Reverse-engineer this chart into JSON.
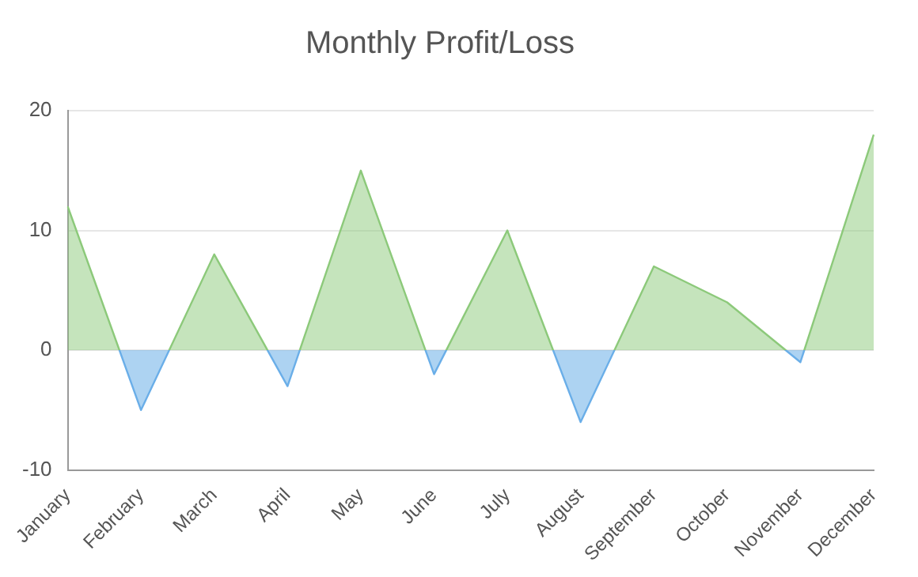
{
  "chart_data": {
    "type": "area",
    "title": "Monthly Profit/Loss",
    "categories": [
      "January",
      "February",
      "March",
      "April",
      "May",
      "June",
      "July",
      "August",
      "September",
      "October",
      "November",
      "December"
    ],
    "values": [
      12,
      -5,
      8,
      -3,
      15,
      -2,
      10,
      -6,
      7,
      4,
      -1,
      18
    ],
    "colors": [
      "#8cc97a",
      "#6aaee8",
      "#8cc97a",
      "#6aaee8",
      "#8cc97a",
      "#6aaee8",
      "#8cc97a",
      "#6aaee8",
      "#8cc97a",
      "#8cc97a",
      "#6aaee8",
      "#8cc97a"
    ],
    "ylim": [
      -10,
      20
    ],
    "yticks": [
      -10,
      0,
      10,
      20
    ],
    "grid": "y",
    "legend": false,
    "marker": "none"
  }
}
